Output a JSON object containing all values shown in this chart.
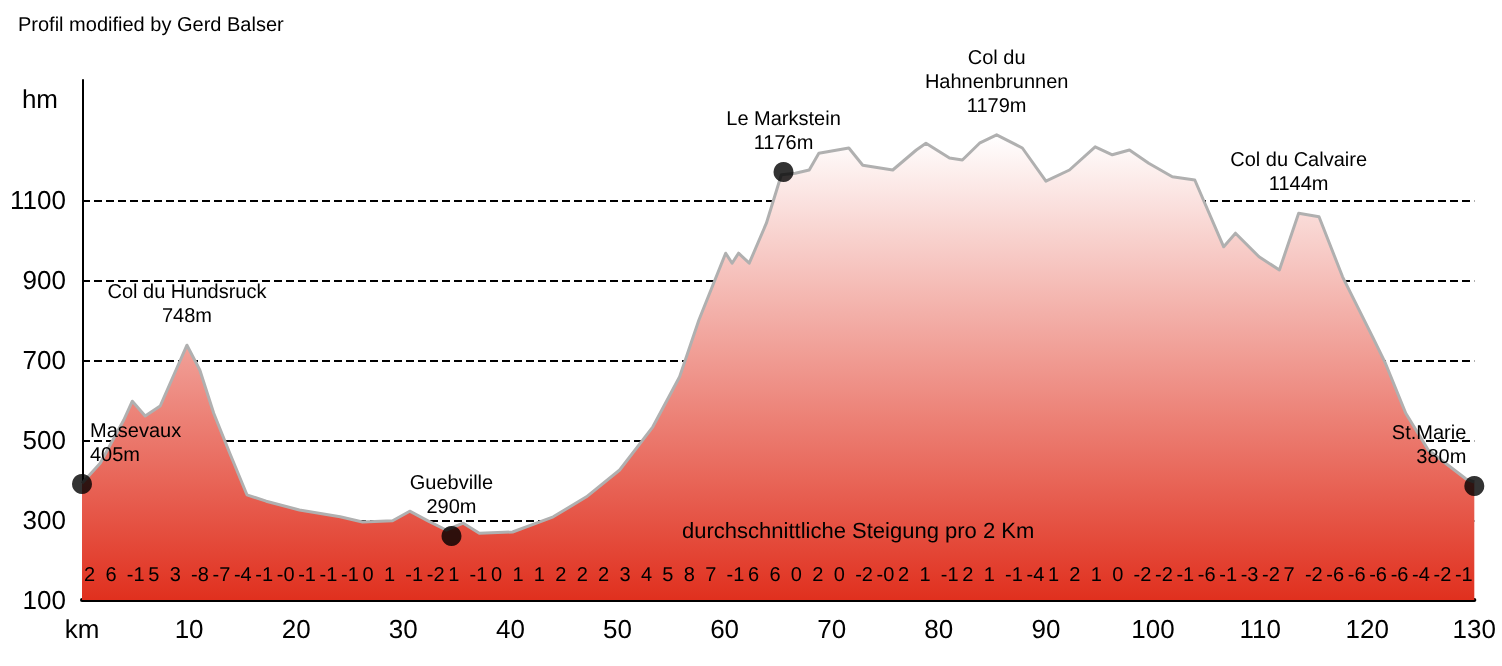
{
  "chart_data": {
    "type": "area",
    "title": "Profil modified by Gerd Balser",
    "ylabel": "hm",
    "x": [
      0,
      1.7,
      3.9,
      4.7,
      5.9,
      7.3,
      9.8,
      11.0,
      12.3,
      13.8,
      15.4,
      17.2,
      20.3,
      24.1,
      26.2,
      29.0,
      30.6,
      32.3,
      34.0,
      35.6,
      37.1,
      40.2,
      44.0,
      47.1,
      50.2,
      53.3,
      55.8,
      57.6,
      60.1,
      60.7,
      61.3,
      62.3,
      63.9,
      65.3,
      66.6,
      67.9,
      68.8,
      71.6,
      72.9,
      75.7,
      77.9,
      78.8,
      81.0,
      82.2,
      83.8,
      85.4,
      87.8,
      90.0,
      92.2,
      94.6,
      96.2,
      97.8,
      99.6,
      101.8,
      103.9,
      106.6,
      107.7,
      109.9,
      111.8,
      113.6,
      115.5,
      117.7,
      120.5,
      121.7,
      123.6,
      125.7,
      129.2,
      130
    ],
    "series": [
      {
        "color": "#e0301e",
        "values": [
          392,
          442,
          550,
          597,
          560,
          585,
          737,
          675,
          567,
          467,
          363,
          347,
          325,
          308,
          295,
          298,
          322,
          298,
          275,
          292,
          267,
          270,
          308,
          358,
          425,
          533,
          658,
          800,
          967,
          942,
          967,
          942,
          1042,
          1163,
          1167,
          1175,
          1217,
          1230,
          1187,
          1175,
          1225,
          1242,
          1205,
          1200,
          1242,
          1263,
          1230,
          1147,
          1175,
          1233,
          1213,
          1225,
          1192,
          1158,
          1150,
          983,
          1017,
          958,
          925,
          1067,
          1058,
          908,
          758,
          692,
          567,
          475,
          403,
          395
        ]
      },
      {
        "type": "scatter",
        "color": "#000000",
        "x": [
          0,
          34.5,
          65.5,
          130
        ],
        "values": [
          390,
          260,
          1170,
          385
        ]
      }
    ],
    "line_style": "solid",
    "xlim": [
      0,
      130
    ],
    "xticks": [
      {
        "value": 0,
        "label": "km"
      },
      10,
      20,
      30,
      40,
      50,
      60,
      70,
      80,
      90,
      100,
      110,
      120,
      130
    ],
    "ylim": [
      100,
      1400
    ],
    "yticks": [
      100,
      300,
      500,
      700,
      900,
      1100
    ],
    "grid": "y",
    "annotations": [
      {
        "text": "Masevaux\n405m",
        "x": 0,
        "y": 390
      },
      {
        "text": "Col du Hundsruck\n748m",
        "x": 9.8,
        "y": 737
      },
      {
        "text": "Guebville\n290m",
        "x": 34.5,
        "y": 260
      },
      {
        "text": "Le Markstein\n1176m",
        "x": 65.5,
        "y": 1170
      },
      {
        "text": "Col du\nHahnenbrunnen\n1179m",
        "x": 85.4,
        "y": 1263
      },
      {
        "text": "Col du Calvaire\n1144m",
        "x": 113.6,
        "y": 1067
      },
      {
        "text": "St.Marie\n380m",
        "x": 130,
        "y": 385
      },
      "durchschnittliche Steigung pro 2 Km",
      "2",
      "6",
      "-1",
      "5",
      "3",
      "-8",
      "-7",
      "-4",
      "-1",
      "-0",
      "-1",
      "-1",
      "-1",
      "0",
      "1",
      "-1",
      "-2",
      "1",
      "-1",
      "0",
      "1",
      "1",
      "2",
      "2",
      "2",
      "3",
      "4",
      "5",
      "8",
      "7",
      "-1",
      "6",
      "6",
      "0",
      "2",
      "0",
      "-2",
      "-0",
      "2",
      "1",
      "-1",
      "2",
      "1",
      "-1",
      "-4",
      "1",
      "2",
      "1",
      "0",
      "-2",
      "-2",
      "-1",
      "-6",
      "-1",
      "-3",
      "-2",
      "7",
      "-2",
      "-6",
      "-6",
      "-6",
      "-6",
      "-4",
      "-2",
      "-1"
    ]
  }
}
